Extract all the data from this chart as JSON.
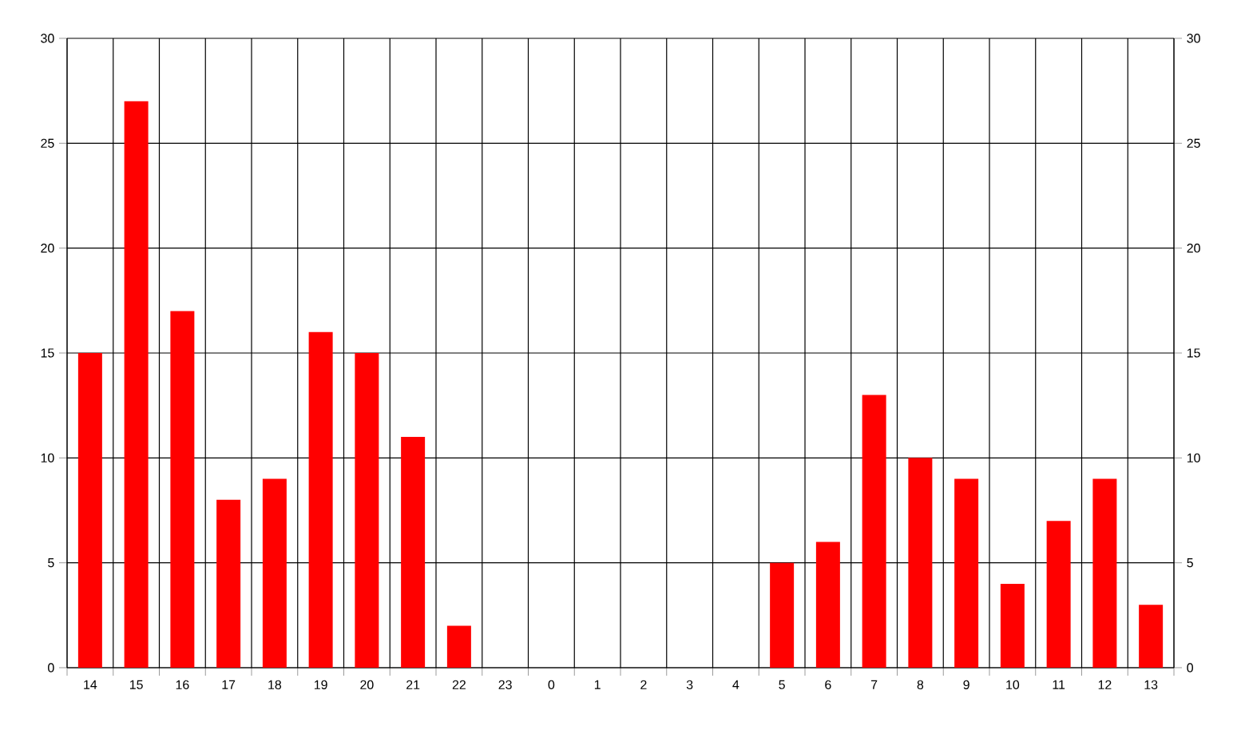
{
  "chart_data": {
    "type": "bar",
    "categories": [
      "14",
      "15",
      "16",
      "17",
      "18",
      "19",
      "20",
      "21",
      "22",
      "23",
      "0",
      "1",
      "2",
      "3",
      "4",
      "5",
      "6",
      "7",
      "8",
      "9",
      "10",
      "11",
      "12",
      "13"
    ],
    "values": [
      15,
      27,
      17,
      8,
      9,
      16,
      15,
      11,
      2,
      0,
      0,
      0,
      0,
      0,
      0,
      5,
      6,
      13,
      10,
      9,
      4,
      7,
      9,
      3
    ],
    "color": "#ff0000",
    "ylim": [
      0,
      30
    ],
    "yticks": [
      0,
      5,
      10,
      15,
      20,
      25,
      30
    ],
    "y2lim": [
      0,
      30
    ],
    "y2ticks": [
      0,
      5,
      10,
      15,
      20,
      25,
      30
    ],
    "grid": true
  }
}
